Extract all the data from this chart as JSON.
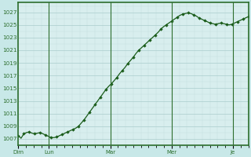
{
  "background_color": "#c8e8e8",
  "plot_bg_color": "#d8eeee",
  "grid_color_major": "#aacccc",
  "grid_color_minor": "#c0dede",
  "line_color": "#1a5c1a",
  "marker_color": "#1a5c1a",
  "tick_label_color": "#2d6e2d",
  "axis_color": "#2d6e2d",
  "ylim": [
    1006.0,
    1028.5
  ],
  "yticks": [
    1007,
    1009,
    1011,
    1013,
    1015,
    1017,
    1019,
    1021,
    1023,
    1025,
    1027
  ],
  "x_day_labels": [
    "Dim",
    "Lun",
    "Mar",
    "Mer",
    "Je"
  ],
  "x_day_positions": [
    0,
    1,
    3,
    5,
    7
  ],
  "xlim": [
    0,
    7.5
  ],
  "pressure_data": [
    1007.5,
    1007.1,
    1007.8,
    1008.0,
    1008.1,
    1007.9,
    1007.8,
    1007.9,
    1008.0,
    1007.8,
    1007.6,
    1007.4,
    1007.2,
    1007.2,
    1007.3,
    1007.5,
    1007.7,
    1007.9,
    1008.1,
    1008.3,
    1008.5,
    1008.7,
    1009.0,
    1009.5,
    1010.0,
    1010.6,
    1011.2,
    1011.8,
    1012.4,
    1013.0,
    1013.6,
    1014.2,
    1014.8,
    1015.3,
    1015.7,
    1016.2,
    1016.7,
    1017.3,
    1017.8,
    1018.3,
    1018.9,
    1019.4,
    1019.9,
    1020.5,
    1021.0,
    1021.4,
    1021.8,
    1022.2,
    1022.6,
    1023.0,
    1023.4,
    1023.8,
    1024.3,
    1024.7,
    1025.0,
    1025.3,
    1025.6,
    1025.9,
    1026.2,
    1026.5,
    1026.7,
    1026.8,
    1026.9,
    1026.8,
    1026.6,
    1026.4,
    1026.1,
    1025.9,
    1025.7,
    1025.5,
    1025.3,
    1025.2,
    1025.1,
    1025.2,
    1025.3,
    1025.2,
    1025.1,
    1025.0,
    1025.1,
    1025.3,
    1025.5,
    1025.7,
    1025.9,
    1026.1,
    1026.3
  ],
  "marker_every": 2
}
